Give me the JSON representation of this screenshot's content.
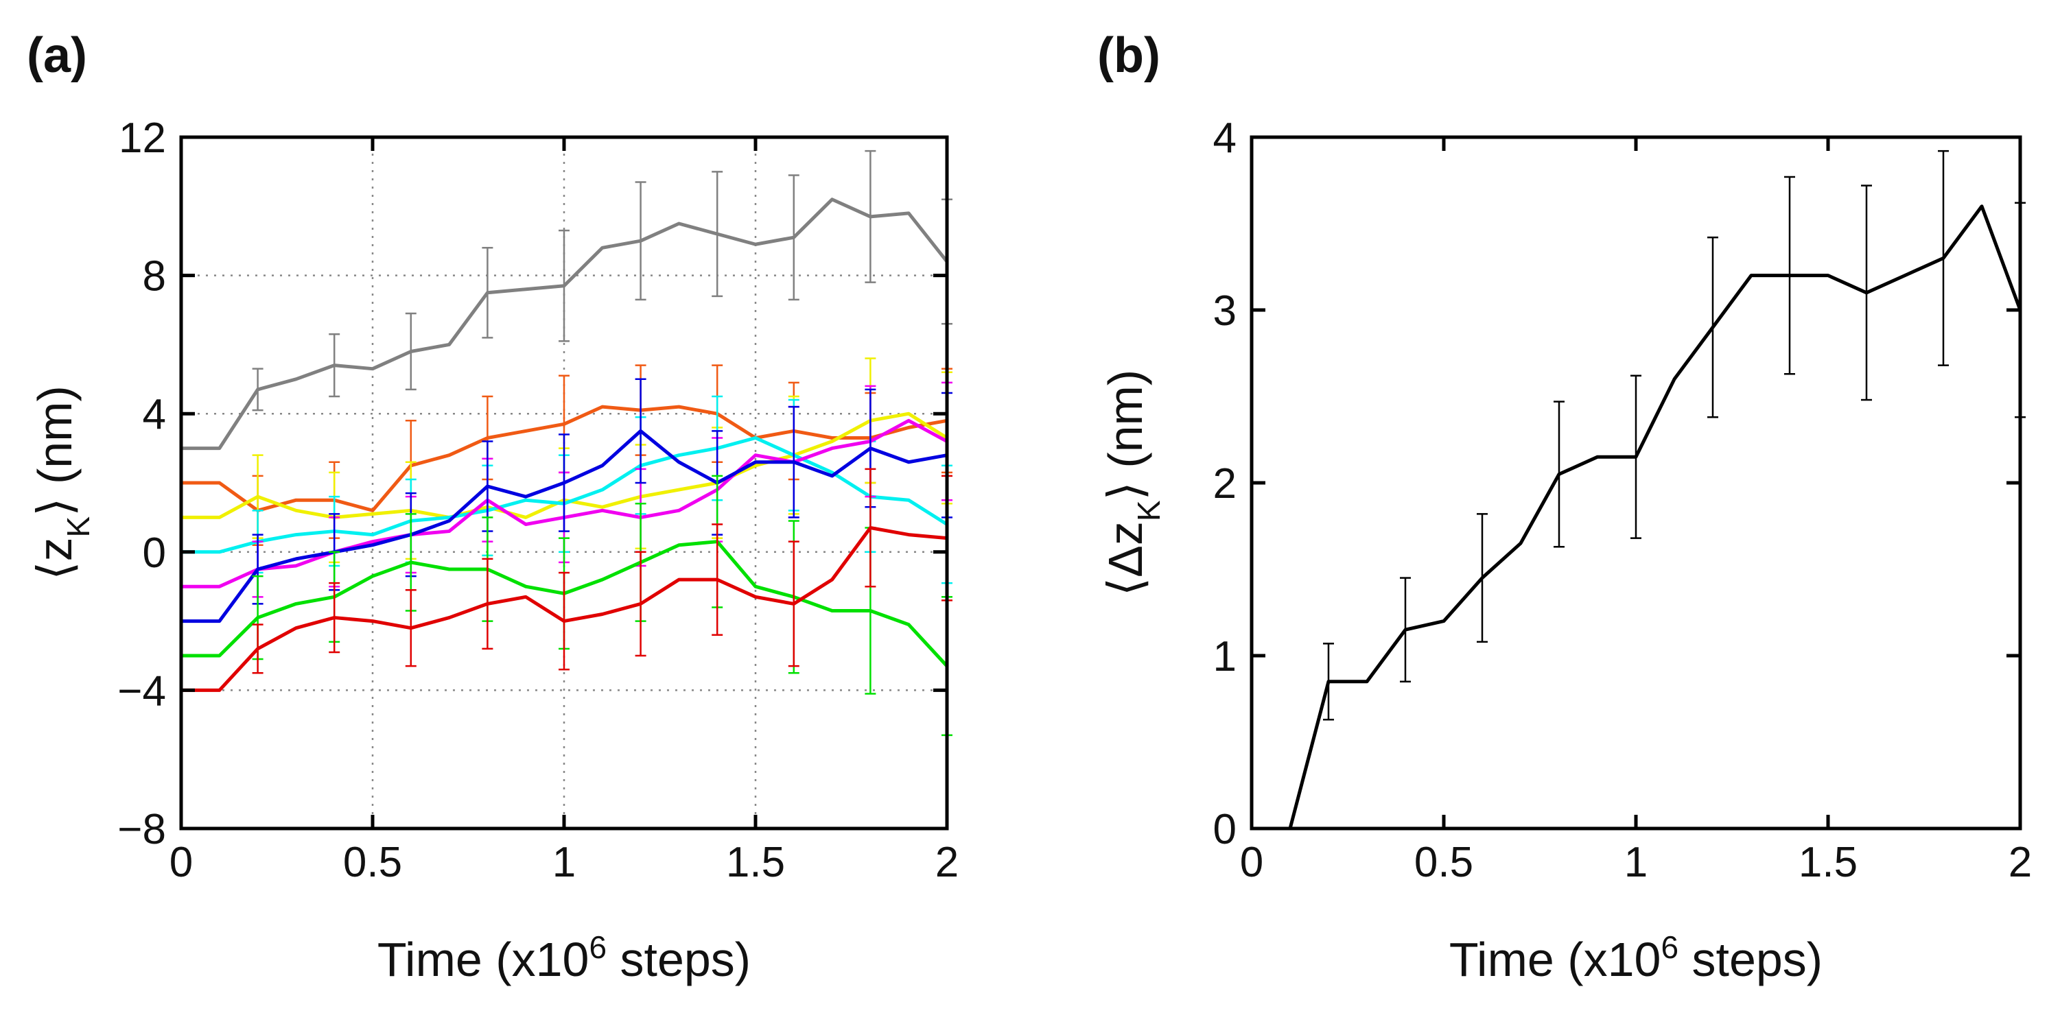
{
  "chart_data": [
    {
      "type": "line",
      "panel_label": "(a)",
      "xlabel": [
        "Time (x10",
        "6",
        " steps)"
      ],
      "ylabel": [
        "⟨z",
        "K",
        "⟩  (nm)"
      ],
      "x": [
        0,
        0.1,
        0.2,
        0.3,
        0.4,
        0.5,
        0.6,
        0.7,
        0.8,
        0.9,
        1,
        1.1,
        1.2,
        1.3,
        1.4,
        1.5,
        1.6,
        1.7,
        1.8,
        1.9,
        2
      ],
      "xlim": [
        0,
        2
      ],
      "xticks": [
        0,
        0.5,
        1,
        1.5,
        2
      ],
      "ylim": [
        -8,
        12
      ],
      "yticks": [
        {
          "value": -8,
          "label": "−8"
        },
        {
          "value": -4,
          "label": "−4"
        },
        0,
        4,
        8,
        12
      ],
      "grid": true,
      "series": [
        {
          "color": "#808080",
          "values": [
            3,
            3,
            4.7,
            5,
            5.4,
            5.3,
            5.8,
            6,
            7.5,
            7.6,
            7.7,
            8.8,
            9,
            9.5,
            9.2,
            8.9,
            9.1,
            10.2,
            9.7,
            9.8,
            8.4
          ],
          "errors": [
            null,
            null,
            0.6,
            null,
            0.9,
            null,
            1.1,
            null,
            1.3,
            null,
            1.6,
            null,
            1.7,
            null,
            1.8,
            null,
            1.8,
            null,
            1.9,
            null,
            1.8
          ]
        },
        {
          "color": "#f05a14",
          "values": [
            2,
            2,
            1.2,
            1.5,
            1.5,
            1.2,
            2.5,
            2.8,
            3.3,
            3.5,
            3.7,
            4.2,
            4.1,
            4.2,
            4.0,
            3.3,
            3.5,
            3.3,
            3.3,
            3.6,
            3.8
          ],
          "errors": [
            null,
            null,
            1.0,
            null,
            1.1,
            null,
            1.3,
            null,
            1.2,
            null,
            1.4,
            null,
            1.3,
            null,
            1.4,
            null,
            1.4,
            null,
            1.3,
            null,
            1.5
          ]
        },
        {
          "color": "#f0f000",
          "values": [
            1,
            1,
            1.6,
            1.2,
            1,
            1.1,
            1.2,
            1.0,
            1.3,
            1.0,
            1.5,
            1.3,
            1.6,
            1.8,
            2.0,
            2.5,
            2.8,
            3.2,
            3.8,
            4.0,
            3.3
          ],
          "errors": [
            null,
            null,
            1.2,
            null,
            1.3,
            null,
            1.4,
            null,
            1.4,
            null,
            1.5,
            null,
            1.5,
            null,
            1.6,
            null,
            1.7,
            null,
            1.8,
            null,
            1.9
          ]
        },
        {
          "color": "#00f0f0",
          "values": [
            0,
            0,
            0.3,
            0.5,
            0.6,
            0.5,
            0.9,
            1.0,
            1.2,
            1.5,
            1.4,
            1.8,
            2.5,
            2.8,
            3.0,
            3.3,
            2.8,
            2.3,
            1.6,
            1.5,
            0.8
          ],
          "errors": [
            null,
            null,
            0.9,
            null,
            1.0,
            null,
            1.2,
            null,
            1.3,
            null,
            1.4,
            null,
            1.4,
            null,
            1.5,
            null,
            1.6,
            null,
            1.6,
            null,
            1.7
          ]
        },
        {
          "color": "#f000f0",
          "values": [
            -1,
            -1,
            -0.5,
            -0.4,
            0,
            0.3,
            0.5,
            0.6,
            1.5,
            0.8,
            1.0,
            1.2,
            1.0,
            1.2,
            1.8,
            2.8,
            2.6,
            3.0,
            3.2,
            3.8,
            3.2
          ],
          "errors": [
            null,
            null,
            0.8,
            null,
            1.0,
            null,
            1.1,
            null,
            1.2,
            null,
            1.3,
            null,
            1.4,
            null,
            1.5,
            null,
            1.6,
            null,
            1.6,
            null,
            1.7
          ]
        },
        {
          "color": "#0000e0",
          "values": [
            -2,
            -2,
            -0.5,
            -0.2,
            0,
            0.2,
            0.5,
            0.9,
            1.9,
            1.6,
            2.0,
            2.5,
            3.5,
            2.6,
            2.0,
            2.6,
            2.6,
            2.2,
            3.0,
            2.6,
            2.8
          ],
          "errors": [
            null,
            null,
            1.0,
            null,
            1.1,
            null,
            1.2,
            null,
            1.3,
            null,
            1.4,
            null,
            1.5,
            null,
            1.5,
            null,
            1.6,
            null,
            1.7,
            null,
            1.8
          ]
        },
        {
          "color": "#00e000",
          "values": [
            -3,
            -3,
            -1.9,
            -1.5,
            -1.3,
            -0.7,
            -0.3,
            -0.5,
            -0.5,
            -1.0,
            -1.2,
            -0.8,
            -0.3,
            0.2,
            0.3,
            -1.0,
            -1.3,
            -1.7,
            -1.7,
            -2.1,
            -3.3
          ],
          "errors": [
            null,
            null,
            1.2,
            null,
            1.3,
            null,
            1.4,
            null,
            1.5,
            null,
            1.6,
            null,
            1.7,
            null,
            1.9,
            null,
            2.2,
            null,
            2.4,
            null,
            2.0
          ]
        },
        {
          "color": "#e00000",
          "values": [
            -4,
            -4,
            -2.8,
            -2.2,
            -1.9,
            -2.0,
            -2.2,
            -1.9,
            -1.5,
            -1.3,
            -2.0,
            -1.8,
            -1.5,
            -0.8,
            -0.8,
            -1.3,
            -1.5,
            -0.8,
            0.7,
            0.5,
            0.4
          ],
          "errors": [
            null,
            null,
            0.7,
            null,
            1.0,
            null,
            1.1,
            null,
            1.3,
            null,
            1.4,
            null,
            1.5,
            null,
            1.6,
            null,
            1.8,
            null,
            1.7,
            null,
            1.8
          ]
        }
      ]
    },
    {
      "type": "line",
      "panel_label": "(b)",
      "xlabel": [
        "Time (x10",
        "6",
        " steps)"
      ],
      "ylabel": [
        "⟨Δz",
        "K",
        "⟩  (nm)"
      ],
      "x": [
        0,
        0.1,
        0.2,
        0.3,
        0.4,
        0.5,
        0.6,
        0.7,
        0.8,
        0.9,
        1,
        1.1,
        1.2,
        1.3,
        1.4,
        1.5,
        1.6,
        1.7,
        1.8,
        1.9,
        2
      ],
      "xlim": [
        0,
        2
      ],
      "xticks": [
        0,
        0.5,
        1,
        1.5,
        2
      ],
      "ylim": [
        0,
        4
      ],
      "yticks": [
        0,
        1,
        2,
        3,
        4
      ],
      "grid": false,
      "series": [
        {
          "color": "#000000",
          "values": [
            0,
            0,
            0.85,
            0.85,
            1.15,
            1.2,
            1.45,
            1.65,
            2.05,
            2.15,
            2.15,
            2.6,
            2.9,
            3.2,
            3.2,
            3.2,
            3.1,
            3.2,
            3.3,
            3.6,
            3.0
          ],
          "errors": [
            null,
            null,
            0.22,
            null,
            0.3,
            null,
            0.37,
            null,
            0.42,
            null,
            0.47,
            null,
            0.52,
            null,
            0.57,
            null,
            0.62,
            null,
            0.62,
            null,
            0.62
          ]
        }
      ]
    }
  ]
}
